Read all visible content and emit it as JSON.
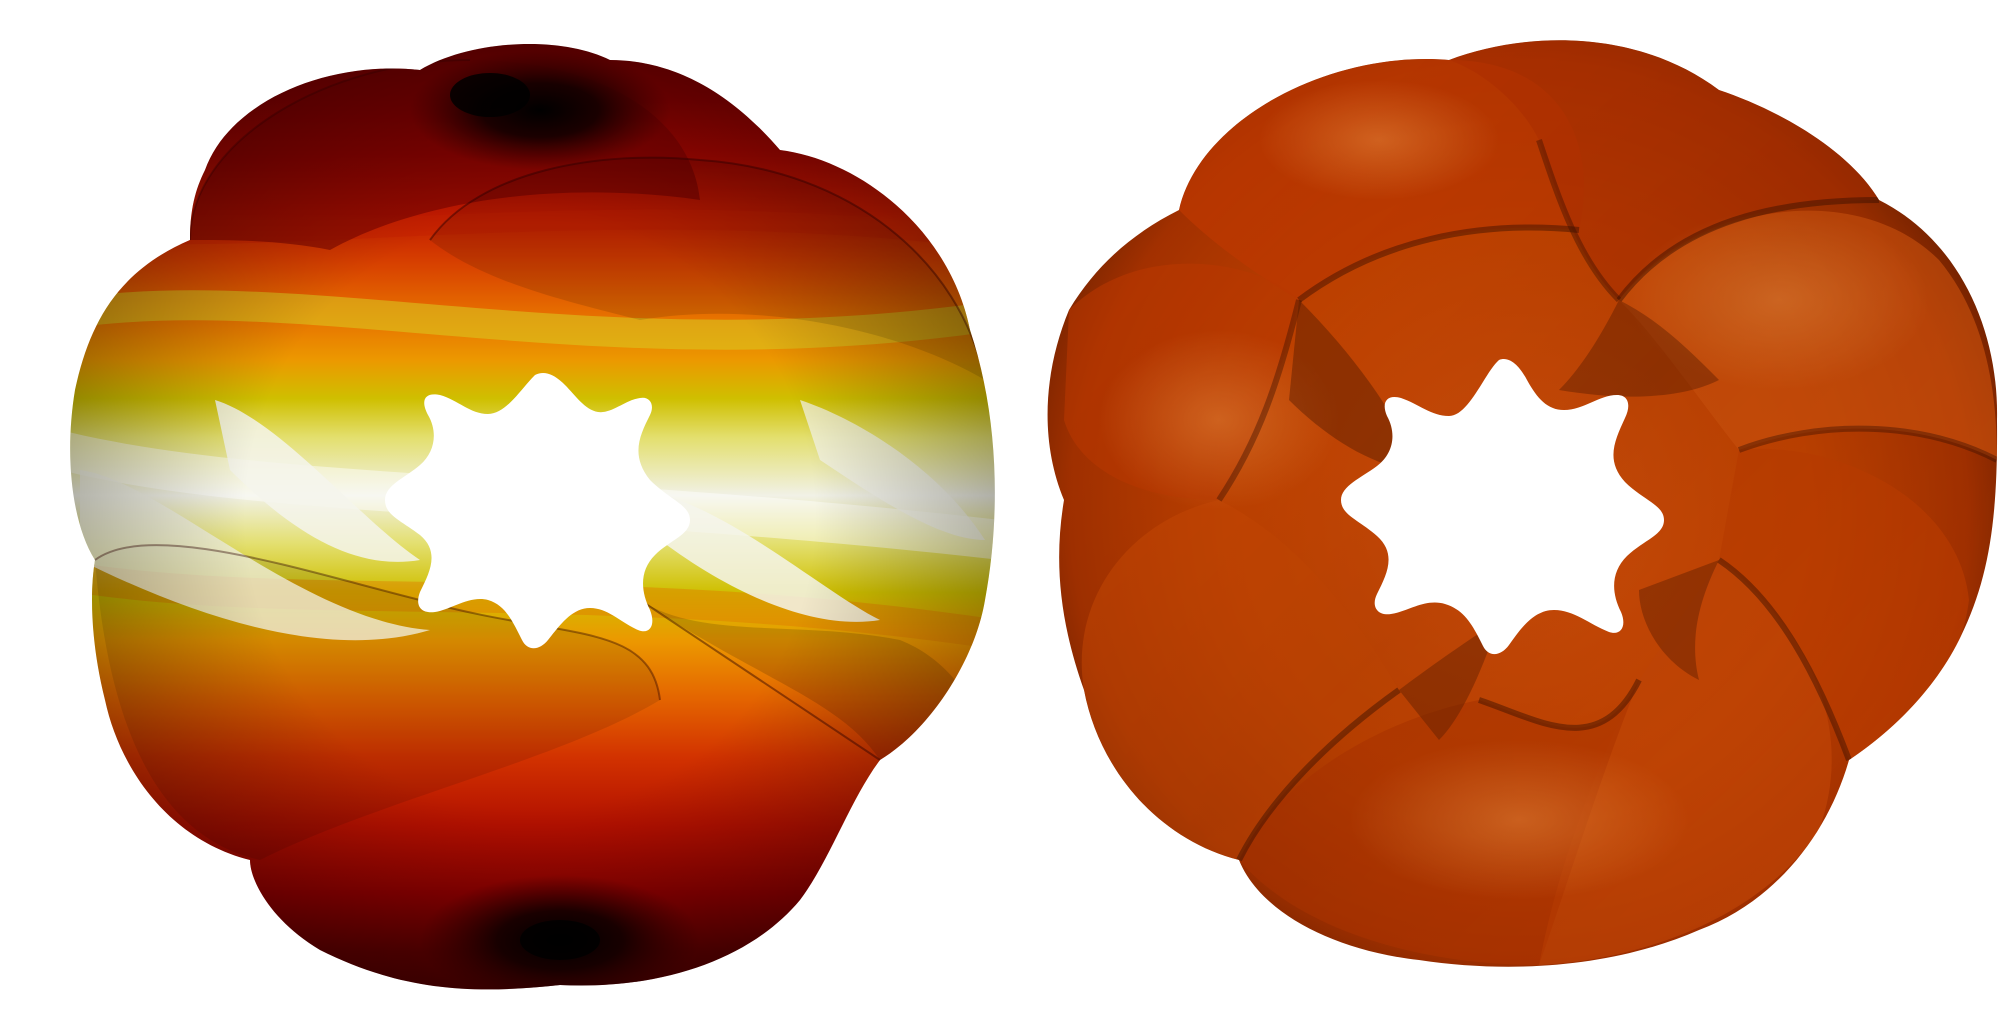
{
  "figure": {
    "left_panel": {
      "subject": "banded-torus-render",
      "palette": [
        "#000000",
        "#5a0000",
        "#8b0000",
        "#b81200",
        "#d42400",
        "#e05a00",
        "#ee8c00",
        "#c9b800",
        "#dfe070",
        "#f2f2e8"
      ]
    },
    "right_panel": {
      "subject": "orange-torus-render",
      "palette": [
        "#3a1200",
        "#6e2200",
        "#a63000",
        "#c94400",
        "#df5a0a",
        "#e97b2a"
      ]
    }
  }
}
